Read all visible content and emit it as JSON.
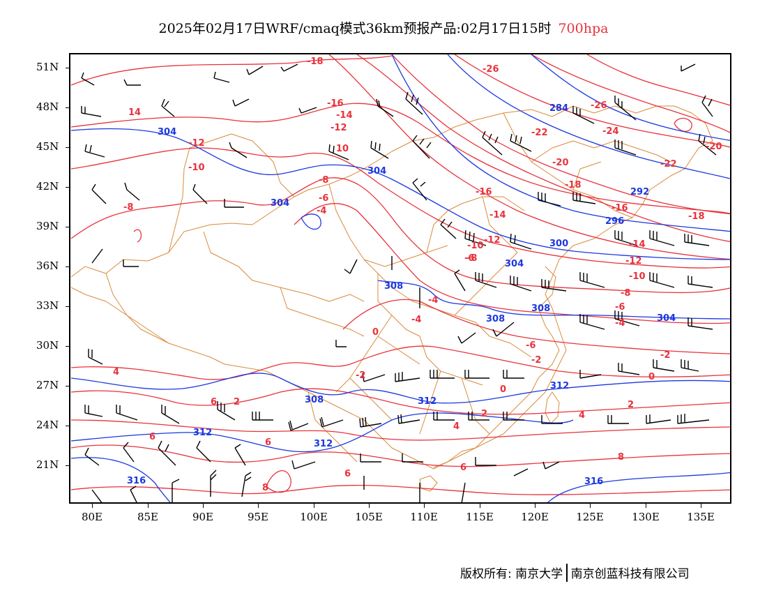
{
  "title": {
    "main": "2025年02月17日WRF/cmaq模式36km预报产品:02月17日15时",
    "level": "700hpa"
  },
  "axes": {
    "lat_labels": [
      "51N",
      "48N",
      "45N",
      "42N",
      "39N",
      "36N",
      "33N",
      "30N",
      "27N",
      "24N",
      "21N"
    ],
    "lon_labels": [
      "80E",
      "85E",
      "90E",
      "95E",
      "100E",
      "105E",
      "110E",
      "115E",
      "120E",
      "125E",
      "130E",
      "135E"
    ]
  },
  "contours": {
    "temperature_color": "#e8323c",
    "height_color": "#1b38e0",
    "border_color": "#d98a3a",
    "temperature_labels": [
      "-18",
      "14",
      "-16",
      "-14",
      "-12",
      "-12",
      "-10",
      "10",
      "-8",
      "-8",
      "-6",
      "-4",
      "-16",
      "-14",
      "-12",
      "-10",
      "-8",
      "-6",
      "-4",
      "0",
      "-2",
      "-4",
      "-6",
      "-2",
      "0",
      "4",
      "2",
      "2",
      "4",
      "6",
      "6",
      "6",
      "6",
      "8",
      "8",
      "-26",
      "-26",
      "-24",
      "-22",
      "-22",
      "-20",
      "-20",
      "-18",
      "-16",
      "-18",
      "-14",
      "-12",
      "-10",
      "-8",
      "-6",
      "-4",
      "-2",
      "0",
      "2",
      "4",
      "6"
    ],
    "height_labels": [
      "304",
      "304",
      "304",
      "304",
      "308",
      "308",
      "308",
      "308",
      "312",
      "312",
      "312",
      "312",
      "316",
      "316",
      "284",
      "292",
      "296",
      "300",
      "304"
    ]
  },
  "copyright": {
    "left": "版权所有: 南京大学",
    "right": "南京创蓝科技有限公司"
  }
}
